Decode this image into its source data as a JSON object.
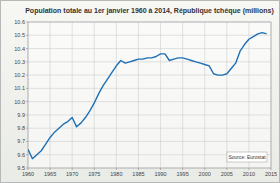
{
  "chart_data": {
    "type": "line",
    "title": "Population totale au 1er janvier 1960 à 2014, République tchèque (millions)",
    "annotations": [
      "Source: Eurostat"
    ],
    "x": [
      1960,
      1961,
      1962,
      1963,
      1964,
      1965,
      1966,
      1967,
      1968,
      1969,
      1970,
      1971,
      1972,
      1973,
      1974,
      1975,
      1976,
      1977,
      1978,
      1979,
      1980,
      1981,
      1982,
      1983,
      1984,
      1985,
      1986,
      1987,
      1988,
      1989,
      1990,
      1991,
      1992,
      1993,
      1994,
      1995,
      1996,
      1997,
      1998,
      1999,
      2000,
      2001,
      2002,
      2003,
      2004,
      2005,
      2006,
      2007,
      2008,
      2009,
      2010,
      2011,
      2012,
      2013,
      2014
    ],
    "series": [
      {
        "name": "Population",
        "color": "#1f6fb5",
        "values": [
          9.64,
          9.57,
          9.6,
          9.63,
          9.68,
          9.73,
          9.77,
          9.8,
          9.83,
          9.85,
          9.88,
          9.81,
          9.84,
          9.88,
          9.93,
          9.99,
          10.06,
          10.12,
          10.17,
          10.22,
          10.27,
          10.31,
          10.29,
          10.3,
          10.31,
          10.32,
          10.32,
          10.33,
          10.33,
          10.34,
          10.36,
          10.36,
          10.31,
          10.32,
          10.33,
          10.33,
          10.32,
          10.31,
          10.3,
          10.29,
          10.28,
          10.27,
          10.21,
          10.2,
          10.2,
          10.21,
          10.25,
          10.29,
          10.38,
          10.43,
          10.47,
          10.49,
          10.51,
          10.52,
          10.51
        ]
      }
    ],
    "xlim": [
      1960,
      2015
    ],
    "xticks": [
      1960,
      1965,
      1970,
      1975,
      1980,
      1985,
      1990,
      1995,
      2000,
      2005,
      2010,
      2015
    ],
    "ylim": [
      9.5,
      10.6
    ],
    "yticks": [
      9.5,
      9.6,
      9.7,
      9.8,
      9.9,
      {
        "value": 10,
        "label": "10.0"
      },
      10.1,
      10.2,
      10.3,
      10.4,
      10.5,
      10.6
    ],
    "grid": true
  }
}
